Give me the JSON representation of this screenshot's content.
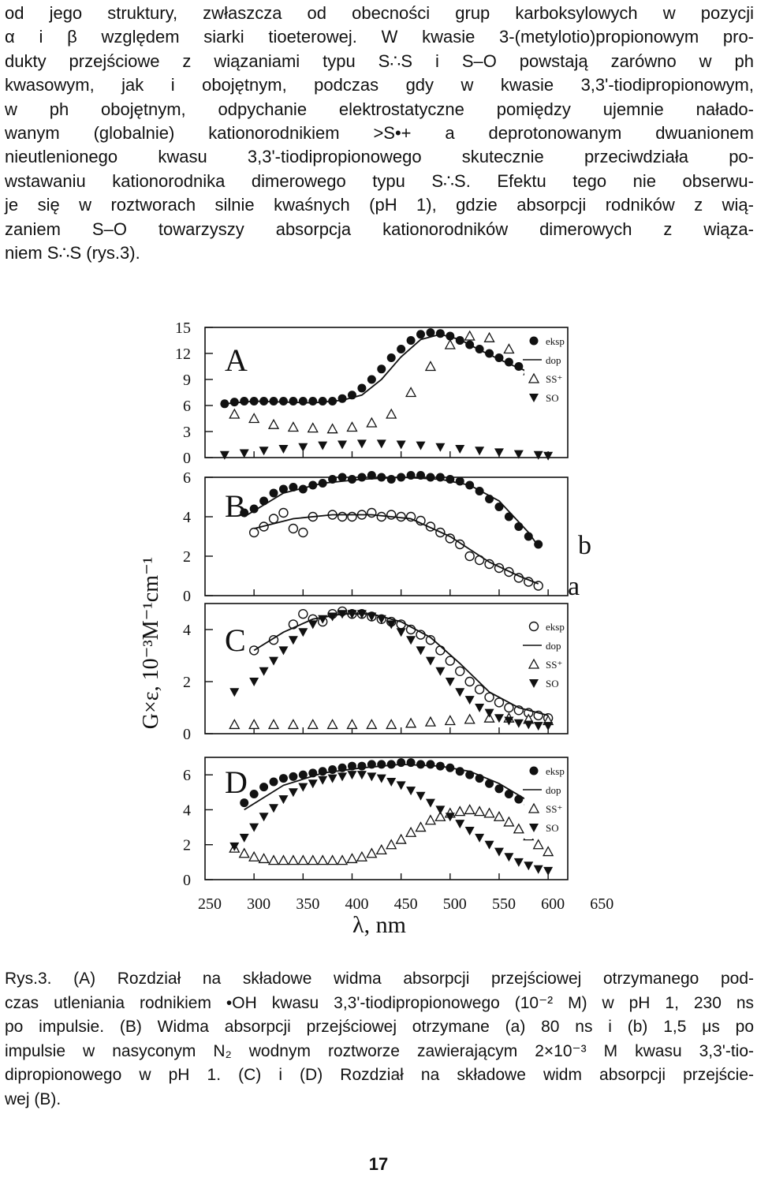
{
  "body_text": [
    "od jego struktury, zwłaszcza od obecności grup karboksylowych w pozycji",
    "α i β względem siarki tioeterowej. W kwasie 3-(metylotio)propionowym pro-",
    "dukty przejściowe z wiązaniami typu S∴S i S–O powstają zarówno w ph",
    "kwasowym, jak i obojętnym, podczas gdy w kwasie 3,3'-tiodipropionowym,",
    "w ph obojętnym, odpychanie elektrostatyczne pomiędzy ujemnie nałado-",
    "wanym (globalnie) kationorodnikiem >S•+ a deprotonowanym dwuanionem",
    "nieutlenionego kwasu 3,3'-tiodipropionowego skutecznie przeciwdziała po-",
    "wstawaniu kationorodnika dimerowego typu S∴S. Efektu tego nie obserwu-",
    "je się w roztworach silnie kwaśnych (pH 1), gdzie absorpcji rodników z wią-",
    "zaniem S–O towarzyszy absorpcja kationorodników dimerowych z wiąza-",
    "niem S∴S (rys.3)."
  ],
  "figure": {
    "y_axis_label": "G×ε, 10⁻³M⁻¹cm⁻¹",
    "x_axis_label": "λ, nm",
    "x_ticks": [
      "250",
      "300",
      "350",
      "400",
      "450",
      "500",
      "550",
      "600",
      "650"
    ],
    "legend_markers": [
      "eksp",
      "dop",
      "SS⁺",
      "SO"
    ],
    "panel_b_curve_labels": [
      "b",
      "a"
    ]
  },
  "chart_data": [
    {
      "type": "scatter",
      "panel": "A",
      "x_range": [
        250,
        650
      ],
      "ylim": [
        0,
        15
      ],
      "y_ticks": [
        "0",
        "3",
        "6",
        "9",
        "12",
        "15"
      ],
      "legend": "top-right",
      "series": [
        {
          "name": "eksp",
          "marker": "filled-circle",
          "x": [
            270,
            280,
            290,
            300,
            310,
            320,
            330,
            340,
            350,
            360,
            370,
            380,
            390,
            400,
            410,
            420,
            430,
            440,
            450,
            460,
            470,
            480,
            490,
            500,
            510,
            520,
            530,
            540,
            550,
            560,
            570,
            580,
            590
          ],
          "y": [
            6.2,
            6.4,
            6.5,
            6.5,
            6.5,
            6.5,
            6.5,
            6.5,
            6.5,
            6.5,
            6.5,
            6.5,
            6.8,
            7.2,
            8.0,
            9.0,
            10.2,
            11.5,
            12.5,
            13.5,
            14.2,
            14.4,
            14.3,
            14.0,
            13.5,
            13.0,
            12.5,
            12.0,
            11.5,
            11.0,
            10.5,
            10.0,
            9.5
          ]
        },
        {
          "name": "dop",
          "marker": "line",
          "x": [
            270,
            300,
            330,
            360,
            390,
            410,
            430,
            450,
            470,
            490,
            510,
            530,
            560,
            590,
            600
          ],
          "y": [
            6.2,
            6.5,
            6.4,
            6.3,
            6.6,
            7.2,
            9.0,
            11.6,
            13.6,
            14.2,
            13.6,
            12.4,
            10.8,
            9.4,
            9.0
          ]
        },
        {
          "name": "SS⁺",
          "marker": "open-triangle",
          "x": [
            280,
            300,
            320,
            340,
            360,
            380,
            400,
            420,
            440,
            460,
            480,
            500,
            520,
            540,
            560,
            580,
            600
          ],
          "y": [
            5.0,
            4.5,
            3.8,
            3.5,
            3.4,
            3.3,
            3.5,
            4.0,
            5.0,
            7.5,
            10.5,
            13.0,
            14.0,
            13.8,
            12.5,
            10.0,
            7.5
          ]
        },
        {
          "name": "SO",
          "marker": "filled-triangle-down",
          "x": [
            270,
            290,
            310,
            330,
            350,
            370,
            390,
            410,
            430,
            450,
            470,
            490,
            510,
            530,
            550,
            570,
            590,
            600
          ],
          "y": [
            0.3,
            0.5,
            0.8,
            1.0,
            1.2,
            1.4,
            1.5,
            1.6,
            1.6,
            1.5,
            1.4,
            1.2,
            1.0,
            0.8,
            0.6,
            0.4,
            0.3,
            0.2
          ]
        }
      ]
    },
    {
      "type": "scatter",
      "panel": "B",
      "x_range": [
        250,
        650
      ],
      "ylim": [
        0,
        6
      ],
      "y_ticks": [
        "0",
        "2",
        "4",
        "6"
      ],
      "series": [
        {
          "name": "b",
          "marker": "filled-circle",
          "x": [
            290,
            300,
            310,
            320,
            330,
            340,
            350,
            360,
            370,
            380,
            390,
            400,
            410,
            420,
            430,
            440,
            450,
            460,
            470,
            480,
            490,
            500,
            510,
            520,
            530,
            540,
            550,
            560,
            570,
            580,
            590
          ],
          "y": [
            4.2,
            4.4,
            4.8,
            5.2,
            5.4,
            5.5,
            5.4,
            5.6,
            5.7,
            5.9,
            6.0,
            5.9,
            6.0,
            6.1,
            6.0,
            5.9,
            6.0,
            6.1,
            6.1,
            6.0,
            6.0,
            5.9,
            5.8,
            5.6,
            5.3,
            4.9,
            4.5,
            4.0,
            3.5,
            3.0,
            2.6
          ]
        },
        {
          "name": "b-fit",
          "marker": "line",
          "x": [
            290,
            330,
            370,
            410,
            450,
            490,
            520,
            550,
            580,
            590
          ],
          "y": [
            4.0,
            5.2,
            5.7,
            5.9,
            6.0,
            5.9,
            5.6,
            4.8,
            3.2,
            2.5
          ]
        },
        {
          "name": "a",
          "marker": "open-circle",
          "x": [
            300,
            310,
            320,
            330,
            340,
            350,
            360,
            380,
            390,
            400,
            410,
            420,
            430,
            440,
            450,
            460,
            470,
            480,
            490,
            500,
            510,
            520,
            530,
            540,
            550,
            560,
            570,
            580,
            590
          ],
          "y": [
            3.2,
            3.5,
            3.9,
            4.2,
            3.4,
            3.2,
            4.0,
            4.1,
            4.0,
            4.0,
            4.1,
            4.2,
            4.0,
            4.1,
            4.0,
            4.0,
            3.8,
            3.5,
            3.2,
            2.9,
            2.6,
            2.0,
            1.8,
            1.6,
            1.4,
            1.2,
            0.9,
            0.7,
            0.5
          ]
        },
        {
          "name": "a-fit",
          "marker": "line",
          "x": [
            300,
            340,
            380,
            420,
            460,
            500,
            540,
            570,
            590
          ],
          "y": [
            3.4,
            3.9,
            4.1,
            4.1,
            3.9,
            3.0,
            1.7,
            1.0,
            0.6
          ]
        }
      ]
    },
    {
      "type": "scatter",
      "panel": "C",
      "x_range": [
        250,
        650
      ],
      "ylim": [
        0,
        5
      ],
      "y_ticks": [
        "0",
        "2",
        "4"
      ],
      "legend": "top-right",
      "series": [
        {
          "name": "eksp",
          "marker": "open-circle",
          "x": [
            300,
            320,
            340,
            350,
            360,
            370,
            380,
            390,
            400,
            410,
            420,
            430,
            440,
            450,
            460,
            470,
            480,
            490,
            500,
            510,
            520,
            530,
            540,
            550,
            560,
            570,
            580,
            590,
            600
          ],
          "y": [
            3.2,
            3.6,
            4.2,
            4.6,
            4.4,
            4.3,
            4.6,
            4.7,
            4.6,
            4.6,
            4.5,
            4.4,
            4.3,
            4.2,
            4.0,
            3.8,
            3.6,
            3.2,
            2.8,
            2.4,
            2.0,
            1.7,
            1.4,
            1.2,
            1.0,
            0.9,
            0.8,
            0.7,
            0.6
          ]
        },
        {
          "name": "dop",
          "marker": "line",
          "x": [
            300,
            330,
            360,
            390,
            420,
            450,
            480,
            510,
            540,
            570,
            600
          ],
          "y": [
            3.2,
            3.9,
            4.4,
            4.6,
            4.6,
            4.3,
            3.7,
            2.7,
            1.6,
            1.0,
            0.7
          ]
        },
        {
          "name": "SS⁺",
          "marker": "open-triangle",
          "x": [
            280,
            300,
            320,
            340,
            360,
            380,
            400,
            420,
            440,
            460,
            480,
            500,
            520,
            540,
            560,
            580,
            600
          ],
          "y": [
            0.35,
            0.35,
            0.35,
            0.35,
            0.35,
            0.35,
            0.35,
            0.35,
            0.35,
            0.4,
            0.45,
            0.5,
            0.55,
            0.6,
            0.6,
            0.55,
            0.5
          ]
        },
        {
          "name": "SO",
          "marker": "filled-triangle-down",
          "x": [
            280,
            300,
            310,
            320,
            330,
            340,
            350,
            360,
            370,
            380,
            390,
            400,
            410,
            420,
            430,
            440,
            450,
            460,
            470,
            480,
            490,
            500,
            510,
            520,
            530,
            540,
            550,
            560,
            570,
            580,
            590,
            600
          ],
          "y": [
            1.6,
            2.0,
            2.4,
            2.8,
            3.2,
            3.6,
            3.9,
            4.2,
            4.4,
            4.5,
            4.6,
            4.6,
            4.6,
            4.5,
            4.4,
            4.2,
            3.9,
            3.6,
            3.2,
            2.8,
            2.4,
            2.0,
            1.6,
            1.3,
            1.0,
            0.8,
            0.6,
            0.5,
            0.4,
            0.35,
            0.3,
            0.3
          ]
        }
      ]
    },
    {
      "type": "scatter",
      "panel": "D",
      "x_range": [
        250,
        650
      ],
      "ylim": [
        0,
        7
      ],
      "y_ticks": [
        "0",
        "2",
        "4",
        "6"
      ],
      "legend": "top-right",
      "series": [
        {
          "name": "eksp",
          "marker": "filled-circle",
          "x": [
            290,
            300,
            310,
            320,
            330,
            340,
            350,
            360,
            370,
            380,
            390,
            400,
            410,
            420,
            430,
            440,
            450,
            460,
            470,
            480,
            490,
            500,
            510,
            520,
            530,
            540,
            550,
            560,
            570,
            580,
            590,
            600
          ],
          "y": [
            4.4,
            4.9,
            5.3,
            5.6,
            5.8,
            5.9,
            6.0,
            6.1,
            6.2,
            6.3,
            6.4,
            6.5,
            6.5,
            6.6,
            6.6,
            6.6,
            6.7,
            6.7,
            6.6,
            6.6,
            6.5,
            6.4,
            6.2,
            6.0,
            5.8,
            5.5,
            5.2,
            4.9,
            4.6,
            4.3,
            4.0,
            3.7
          ]
        },
        {
          "name": "dop",
          "marker": "line",
          "x": [
            290,
            330,
            370,
            410,
            450,
            490,
            520,
            550,
            580,
            600
          ],
          "y": [
            4.0,
            5.4,
            6.1,
            6.4,
            6.6,
            6.5,
            6.2,
            5.5,
            4.5,
            3.8
          ]
        },
        {
          "name": "SS⁺",
          "marker": "open-triangle",
          "x": [
            280,
            290,
            300,
            310,
            320,
            330,
            340,
            350,
            360,
            370,
            380,
            390,
            400,
            410,
            420,
            430,
            440,
            450,
            460,
            470,
            480,
            490,
            500,
            510,
            520,
            530,
            540,
            550,
            560,
            570,
            580,
            590,
            600
          ],
          "y": [
            1.8,
            1.5,
            1.3,
            1.2,
            1.1,
            1.1,
            1.1,
            1.1,
            1.1,
            1.1,
            1.1,
            1.1,
            1.2,
            1.3,
            1.5,
            1.7,
            2.0,
            2.3,
            2.7,
            3.0,
            3.4,
            3.6,
            3.8,
            3.9,
            4.0,
            3.9,
            3.8,
            3.6,
            3.3,
            2.9,
            2.5,
            2.0,
            1.6
          ]
        },
        {
          "name": "SO",
          "marker": "filled-triangle-down",
          "x": [
            280,
            290,
            300,
            310,
            320,
            330,
            340,
            350,
            360,
            370,
            380,
            390,
            400,
            410,
            420,
            430,
            440,
            450,
            460,
            470,
            480,
            490,
            500,
            510,
            520,
            530,
            540,
            550,
            560,
            570,
            580,
            590,
            600
          ],
          "y": [
            1.9,
            2.4,
            3.0,
            3.6,
            4.1,
            4.6,
            5.0,
            5.3,
            5.5,
            5.7,
            5.8,
            5.9,
            6.0,
            6.0,
            5.9,
            5.8,
            5.6,
            5.4,
            5.1,
            4.8,
            4.4,
            4.0,
            3.6,
            3.2,
            2.8,
            2.4,
            2.0,
            1.6,
            1.3,
            1.0,
            0.8,
            0.6,
            0.5
          ]
        }
      ]
    }
  ],
  "caption": [
    "Rys.3. (A) Rozdział na składowe widma absorpcji przejściowej otrzymanego pod-",
    "czas utleniania rodnikiem •OH kwasu 3,3'-tiodipropionowego (10⁻² M) w pH 1, 230 ns",
    "po impulsie. (B) Widma absorpcji przejściowej otrzymane (a) 80 ns i (b) 1,5 μs po",
    "impulsie w nasyconym N₂ wodnym roztworze zawierającym 2×10⁻³ M kwasu 3,3'-tio-",
    "dipropionowego w pH 1. (C) i (D) Rozdział na składowe widm absorpcji przejście-",
    "wej (B)."
  ],
  "page_number": "17"
}
